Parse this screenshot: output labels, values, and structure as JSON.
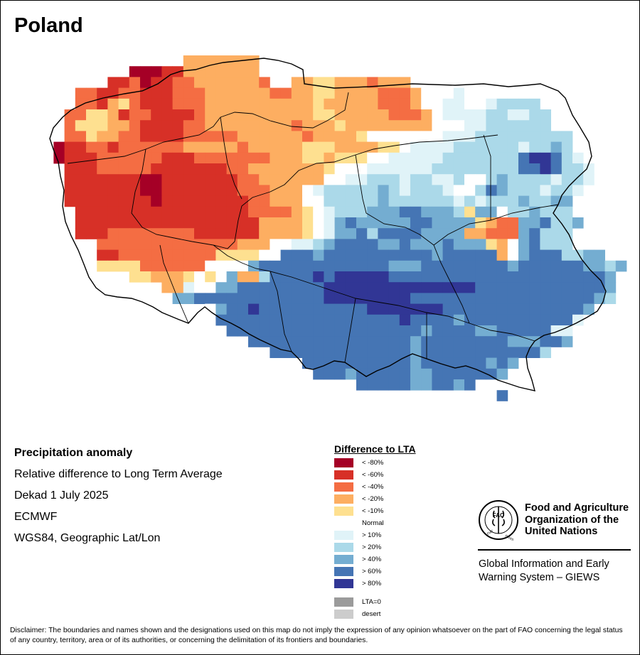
{
  "title": "Poland",
  "info": {
    "heading": "Precipitation anomaly",
    "line1": "Relative difference to Long Term Average",
    "line2": "Dekad 1 July 2025",
    "line3": "ECMWF",
    "line4": "WGS84, Geographic Lat/Lon"
  },
  "legend": {
    "title": "Difference to LTA",
    "items": [
      {
        "label": "< -80%",
        "color": "#a50026"
      },
      {
        "label": "< -60%",
        "color": "#d73027"
      },
      {
        "label": "< -40%",
        "color": "#f46d43"
      },
      {
        "label": "< -20%",
        "color": "#fdae61"
      },
      {
        "label": "< -10%",
        "color": "#fee090"
      },
      {
        "label": "Normal",
        "color": "#ffffff"
      },
      {
        "label": "> 10%",
        "color": "#e0f3f8"
      },
      {
        "label": "> 20%",
        "color": "#abd9e9"
      },
      {
        "label": "> 40%",
        "color": "#74add1"
      },
      {
        "label": "> 60%",
        "color": "#4575b4"
      },
      {
        "label": "> 80%",
        "color": "#313695"
      }
    ],
    "extra": [
      {
        "label": "LTA=0",
        "color": "#9b9b9b"
      },
      {
        "label": "desert",
        "color": "#cccccc"
      }
    ]
  },
  "fao": {
    "logo_text": "FAO FIAT PANIS",
    "name_line1": "Food and Agriculture",
    "name_line2": "Organization of the",
    "name_line3": "United Nations",
    "giews_line1": "Global Information and Early",
    "giews_line2": "Warning System – GIEWS"
  },
  "disclaimer": "Disclaimer: The boundaries and names shown and the designations used on this map do not imply the expression of any opinion whatsoever on the part of FAO concerning the legal status of any country, territory, area or of its authorities, or concerning the delimitation of its frontiers and boundaries.",
  "map_data": {
    "description_levels": "row strings of anomaly classes west to east, north to south; . = outside, 0 = < -80%, 1 = < -60%, 2 = < -40%, 3 = < -20%, 4 = < -10%, 5 = Normal, 6 = > 10%, 7 = > 20%, 8 = > 40%, 9 = > 60%, A = > 80%",
    "rows": [
      "..............3333333.................................",
      ".........000113333333.................................",
      ".......112011223333332..33443332333...................",
      "....2211221112223333332233443333222355565555..........",
      "....2213421112223333333333433333222355665567777.......",
      "...224431221111233333333334433333222356666776677......",
      "...244433211112233333333233343333333355566777777......",
      "...22433221111222223333332333345555555666777777777....",
      "..011221222222333332333334443333445666677777767787....",
      "..01112222221112222222333443444556666677777779AA976...",
      "...11122222111111122333333345556666667777777799A9776..",
      "...1111111001111111223333335566777677667557877776776..",
      "...111111100111111122233356777778767776557987776776...",
      "...11111111011111111223335577777877777767677787788....",
      "....1111111111111111222234567778889988874885778777....",
      "....11111111111111111333345689888889988884322889778...",
      "....1112222222211111133334568897999988883322289777....",
      "......22222222222223335566789999889888988843589777....",
      "......11222222222444455999899999999998999993589997788.",
      "......4444222222555589999999999998889999999989999998878",
      ".........44333454583379999A9AAAAA999999999999999999998.",
      "............336558899999999AAAAAAAAAAAAAA9999999999998.",
      "............588999999999999AAAAAAAA9999999999999999987.",
      "................5899A9999999999AAAAAAA99999999999998...",
      ".................99999999999999999A9999899999999996....",
      "..................99999999999999999989999889999966.....",
      "....................999999999999999899999999888998.....",
      "......................99999999999998999999999997......",
      ".........................99999999998999999898.........",
      "..........................999899999889999998..........",
      "..............................99999889989.............",
      "...........................................9.........."
    ]
  }
}
